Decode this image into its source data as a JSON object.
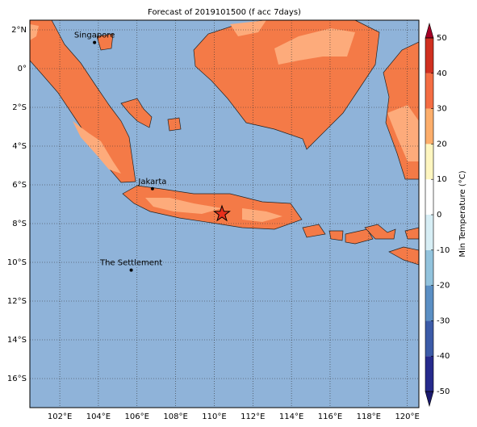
{
  "title": "Forecast of 2019101500 (f acc 7days)",
  "map": {
    "lon_range": [
      100.45,
      120.6
    ],
    "lat_range": [
      -17.5,
      2.5
    ],
    "lon_ticks": [
      {
        "value": 102,
        "label": "102°E"
      },
      {
        "value": 104,
        "label": "104°E"
      },
      {
        "value": 106,
        "label": "106°E"
      },
      {
        "value": 108,
        "label": "108°E"
      },
      {
        "value": 110,
        "label": "110°E"
      },
      {
        "value": 112,
        "label": "112°E"
      },
      {
        "value": 114,
        "label": "114°E"
      },
      {
        "value": 116,
        "label": "116°E"
      },
      {
        "value": 118,
        "label": "118°E"
      },
      {
        "value": 120,
        "label": "120°E"
      }
    ],
    "lat_ticks": [
      {
        "value": 2,
        "label": "2°N"
      },
      {
        "value": 0,
        "label": "0°"
      },
      {
        "value": -2,
        "label": "2°S"
      },
      {
        "value": -4,
        "label": "4°S"
      },
      {
        "value": -6,
        "label": "6°S"
      },
      {
        "value": -8,
        "label": "8°S"
      },
      {
        "value": -10,
        "label": "10°S"
      },
      {
        "value": -12,
        "label": "12°S"
      },
      {
        "value": -14,
        "label": "14°S"
      },
      {
        "value": -16,
        "label": "16°S"
      }
    ],
    "cities": [
      {
        "name": "Singapore",
        "lon": 103.8,
        "lat": 1.35
      },
      {
        "name": "Jakarta",
        "lon": 106.8,
        "lat": -6.2
      },
      {
        "name": "The Settlement",
        "lon": 105.7,
        "lat": -10.4
      }
    ],
    "marker": {
      "lon": 110.4,
      "lat": -7.5
    }
  },
  "colorbar": {
    "label": "Min Temperature (°C)",
    "ticks": [
      -50,
      -40,
      -30,
      -20,
      -10,
      0,
      10,
      20,
      30,
      40,
      50
    ],
    "colors": [
      "#262a8c",
      "#3c5ba8",
      "#5b8fc4",
      "#92c3dd",
      "#d7eef5",
      "#ffffff",
      "#fef6c0",
      "#fdae6b",
      "#f46d43",
      "#d03020"
    ],
    "under_color": "#1a1a6e",
    "over_color": "#a50026"
  }
}
